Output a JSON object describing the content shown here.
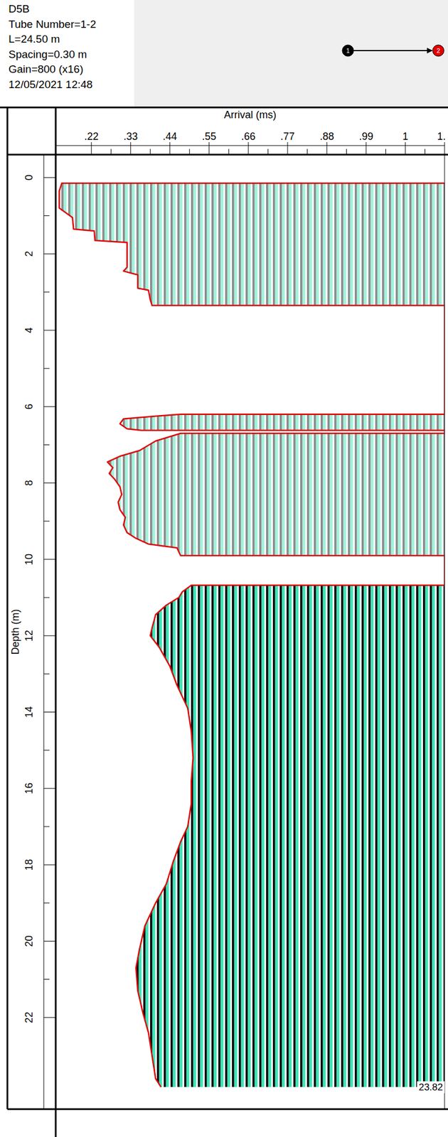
{
  "chart_data": {
    "type": "line",
    "orientation": "horizontal",
    "title": "D5B",
    "annotations": [
      "Tube Number=1-2",
      "L=24.50 m",
      "Spacing=0.30 m",
      "Gain=800 (x16)",
      "12/05/2021 12:48"
    ],
    "tubes": [
      "1",
      "2"
    ],
    "x_label": "Depth (m)",
    "y_label": "Arrival (ms)",
    "end_label": 23.82,
    "color": "#e00000",
    "grid": false,
    "xlim": [
      -0.6,
      24.4
    ],
    "xticks": [
      0,
      2,
      4,
      6,
      8,
      10,
      12,
      14,
      16,
      18,
      20,
      22
    ],
    "ylim": [
      0.12,
      1.21
    ],
    "yticks": [
      {
        "value": 0.22,
        "label": ".22"
      },
      {
        "value": 0.33,
        "label": ".33"
      },
      {
        "value": 0.44,
        "label": ".44"
      },
      {
        "value": 0.55,
        "label": ".55"
      },
      {
        "value": 0.66,
        "label": ".66"
      },
      {
        "value": 0.77,
        "label": ".77"
      },
      {
        "value": 0.88,
        "label": ".88"
      },
      {
        "value": 0.99,
        "label": ".99"
      },
      {
        "value": 1.1,
        "label": "1"
      },
      {
        "value": 1.21,
        "label": "1."
      }
    ],
    "x": [
      0.15,
      0.35,
      0.8,
      1.0,
      1.05,
      1.35,
      1.4,
      1.65,
      1.7,
      2.35,
      2.45,
      2.55,
      2.9,
      2.95,
      3.2,
      3.35,
      4.5,
      6.2,
      6.25,
      6.32,
      6.45,
      6.58,
      6.62,
      6.66,
      6.7,
      6.9,
      7.15,
      7.3,
      7.45,
      7.6,
      7.75,
      7.9,
      8.1,
      8.3,
      8.5,
      8.7,
      8.9,
      9.1,
      9.3,
      9.45,
      9.6,
      9.7,
      9.9,
      10.3,
      10.68,
      10.85,
      11.0,
      11.2,
      11.45,
      11.8,
      12.0,
      12.3,
      12.8,
      13.3,
      13.9,
      14.5,
      15.2,
      15.8,
      16.4,
      17.0,
      17.4,
      17.9,
      18.5,
      19.0,
      19.6,
      20.2,
      20.7,
      21.3,
      21.9,
      22.4,
      23.0,
      23.6,
      23.82
    ],
    "values": [
      0.137,
      0.13,
      0.13,
      0.16,
      0.167,
      0.17,
      0.228,
      0.23,
      0.32,
      0.32,
      0.31,
      0.35,
      0.35,
      0.38,
      0.385,
      0.39,
      null,
      0.47,
      0.4,
      0.31,
      0.3,
      0.32,
      0.36,
      null,
      0.47,
      0.4,
      0.355,
      0.3,
      0.265,
      0.28,
      0.27,
      0.285,
      0.3,
      0.305,
      0.295,
      0.3,
      0.315,
      0.31,
      0.32,
      0.345,
      0.38,
      0.46,
      0.47,
      null,
      0.5,
      0.475,
      0.465,
      0.43,
      0.4,
      0.39,
      0.385,
      0.41,
      0.44,
      0.46,
      0.49,
      0.5,
      0.505,
      0.5,
      0.5,
      0.49,
      0.47,
      0.45,
      0.43,
      0.4,
      0.37,
      0.355,
      0.345,
      0.35,
      0.365,
      0.38,
      0.39,
      0.4,
      0.415
    ]
  }
}
